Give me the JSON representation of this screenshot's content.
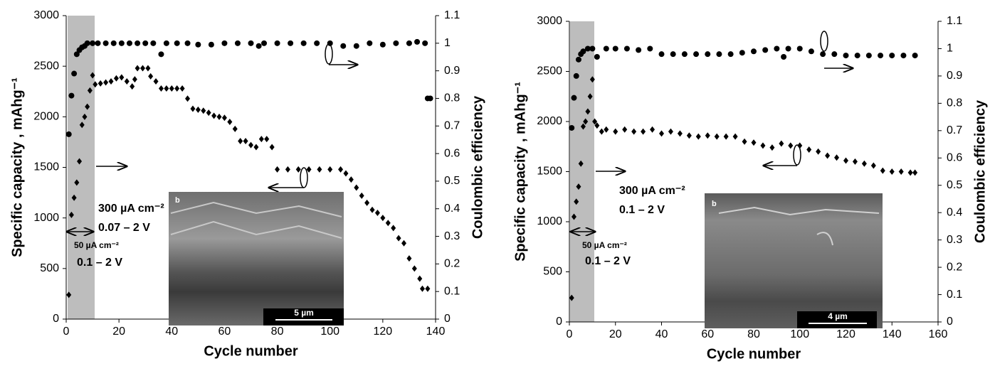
{
  "chart_data": [
    {
      "type": "scatter",
      "x_label": "Cycle number",
      "y_label": "Specific capacity , mAhg⁻¹",
      "y2_label": "Coulombic efficiency",
      "xlim": [
        0,
        140
      ],
      "xticks": [
        0,
        20,
        40,
        60,
        80,
        100,
        120,
        140
      ],
      "ylim": [
        0,
        3000
      ],
      "yticks": [
        0,
        500,
        1000,
        1500,
        2000,
        2500,
        3000
      ],
      "y2lim": [
        0,
        1.1
      ],
      "y2ticks": [
        0,
        0.1,
        0.2,
        0.3,
        0.4,
        0.5,
        0.6,
        0.7,
        0.8,
        0.9,
        1,
        1.1
      ],
      "annotations": [
        "300 µA cm⁻²",
        "0.07 – 2 V",
        "50 µA cm⁻²",
        "0.1 – 2 V",
        "b",
        "5 µm"
      ],
      "series": [
        {
          "marker": "diamond",
          "color": "#000000",
          "x": [
            1,
            2,
            3,
            4,
            5,
            6,
            7,
            8,
            9,
            10,
            11,
            13,
            15,
            17,
            19,
            21,
            23,
            25,
            26,
            27,
            29,
            31,
            32,
            34,
            36,
            38,
            40,
            42,
            44,
            46,
            48,
            50,
            52,
            54,
            56,
            58,
            60,
            62,
            64,
            66,
            68,
            70,
            72,
            74,
            76,
            78,
            80,
            84,
            88,
            92,
            96,
            100,
            104,
            106,
            108,
            110,
            112,
            114,
            116,
            118,
            120,
            122,
            124,
            126,
            128,
            130,
            132,
            134,
            135,
            137
          ],
          "values": [
            240,
            1030,
            1200,
            1350,
            1560,
            1920,
            2000,
            2100,
            2260,
            2410,
            2320,
            2330,
            2340,
            2350,
            2380,
            2390,
            2350,
            2300,
            2370,
            2480,
            2480,
            2480,
            2400,
            2350,
            2280,
            2280,
            2280,
            2280,
            2280,
            2180,
            2080,
            2070,
            2060,
            2040,
            2010,
            2000,
            1990,
            1950,
            1880,
            1760,
            1760,
            1720,
            1700,
            1780,
            1780,
            1700,
            1480,
            1480,
            1480,
            1480,
            1480,
            1480,
            1480,
            1440,
            1380,
            1300,
            1220,
            1150,
            1080,
            1050,
            1000,
            950,
            900,
            800,
            750,
            600,
            500,
            400,
            300,
            300
          ]
        },
        {
          "marker": "circle",
          "color": "#000000",
          "axis": "y2",
          "x": [
            1,
            2,
            3,
            4,
            5,
            6,
            7,
            8,
            10,
            12,
            15,
            18,
            21,
            24,
            27,
            30,
            33,
            36,
            38,
            42,
            46,
            50,
            55,
            60,
            65,
            70,
            73,
            75,
            80,
            85,
            90,
            95,
            100,
            105,
            110,
            115,
            120,
            125,
            130,
            133,
            136,
            137,
            138
          ],
          "values": [
            0.67,
            0.81,
            0.89,
            0.96,
            0.975,
            0.985,
            0.99,
            1,
            1,
            1,
            1,
            1,
            1,
            1,
            1,
            1,
            1,
            0.96,
            1,
            1,
            1,
            0.995,
            0.995,
            1,
            1,
            1,
            0.99,
            1,
            1,
            1,
            1,
            1,
            1,
            0.99,
            0.99,
            1,
            0.995,
            1,
            1,
            1.005,
            1,
            0.8,
            0.8
          ]
        }
      ]
    },
    {
      "type": "scatter",
      "x_label": "Cycle number",
      "y_label": "Specific capacity , mAhg⁻¹",
      "y2_label": "Coulombic efficiency",
      "xlim": [
        0,
        160
      ],
      "xticks": [
        0,
        20,
        40,
        60,
        80,
        100,
        120,
        140,
        160
      ],
      "ylim": [
        0,
        3000
      ],
      "yticks": [
        0,
        500,
        1000,
        1500,
        2000,
        2500,
        3000
      ],
      "y2lim": [
        0,
        1.1
      ],
      "y2ticks": [
        0,
        0.1,
        0.2,
        0.3,
        0.4,
        0.5,
        0.6,
        0.7,
        0.8,
        0.9,
        1,
        1.1
      ],
      "annotations": [
        "300 µA cm⁻²",
        "0.1 – 2 V",
        "50 µA cm⁻²",
        "0.1 – 2 V",
        "b",
        "4 µm"
      ],
      "series": [
        {
          "marker": "diamond",
          "color": "#000000",
          "x": [
            1,
            2,
            3,
            4,
            5,
            6,
            7,
            8,
            9,
            10,
            11,
            12,
            14,
            16,
            20,
            24,
            28,
            32,
            36,
            40,
            44,
            48,
            52,
            56,
            60,
            64,
            68,
            72,
            76,
            80,
            84,
            88,
            92,
            96,
            100,
            104,
            108,
            112,
            116,
            120,
            124,
            128,
            132,
            136,
            140,
            144,
            148,
            150
          ],
          "values": [
            240,
            1050,
            1200,
            1350,
            1580,
            1950,
            2000,
            2100,
            2250,
            2420,
            2000,
            1960,
            1900,
            1920,
            1900,
            1920,
            1900,
            1900,
            1920,
            1880,
            1900,
            1880,
            1860,
            1850,
            1860,
            1850,
            1850,
            1850,
            1800,
            1790,
            1760,
            1740,
            1780,
            1760,
            1760,
            1720,
            1700,
            1660,
            1640,
            1610,
            1600,
            1580,
            1560,
            1510,
            1500,
            1500,
            1490,
            1490
          ]
        },
        {
          "marker": "circle",
          "color": "#000000",
          "axis": "y2",
          "x": [
            1,
            2,
            3,
            4,
            5,
            6,
            8,
            10,
            12,
            16,
            20,
            25,
            30,
            35,
            40,
            45,
            50,
            55,
            60,
            65,
            70,
            75,
            80,
            85,
            90,
            93,
            95,
            100,
            105,
            110,
            115,
            120,
            125,
            130,
            135,
            140,
            145,
            150
          ],
          "values": [
            0.71,
            0.82,
            0.9,
            0.96,
            0.98,
            0.99,
            1,
            1,
            0.97,
            1,
            1,
            1,
            0.995,
            1,
            0.98,
            0.98,
            0.98,
            0.98,
            0.98,
            0.98,
            0.98,
            0.985,
            0.99,
            0.995,
            1,
            0.97,
            1,
            1,
            0.99,
            0.98,
            0.98,
            0.975,
            0.975,
            0.975,
            0.975,
            0.975,
            0.975,
            0.975
          ]
        }
      ]
    }
  ]
}
